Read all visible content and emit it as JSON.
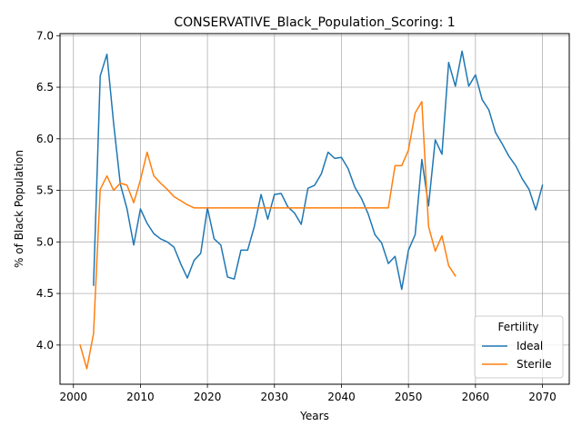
{
  "chart_data": {
    "type": "line",
    "title": "CONSERVATIVE_Black_Population_Scoring: 1",
    "xlabel": "Years",
    "ylabel": "% of Black Population",
    "xlim": [
      1998,
      2074
    ],
    "ylim": [
      3.62,
      7.02
    ],
    "xticks": [
      2000,
      2010,
      2020,
      2030,
      2040,
      2050,
      2060,
      2070
    ],
    "yticks": [
      4.0,
      4.5,
      5.0,
      5.5,
      6.0,
      6.5,
      7.0
    ],
    "ytick_labels": [
      "4.0",
      "4.5",
      "5.0",
      "5.5",
      "6.0",
      "6.5",
      "7.0"
    ],
    "grid": true,
    "legend": {
      "title": "Fertility",
      "position": "lower-right"
    },
    "series": [
      {
        "name": "Ideal",
        "color": "#1f77b4",
        "x": [
          2003,
          2004,
          2005,
          2006,
          2007,
          2008,
          2009,
          2010,
          2011,
          2012,
          2013,
          2014,
          2015,
          2016,
          2017,
          2018,
          2019,
          2020,
          2021,
          2022,
          2023,
          2024,
          2025,
          2026,
          2027,
          2028,
          2029,
          2030,
          2031,
          2032,
          2033,
          2034,
          2035,
          2036,
          2037,
          2038,
          2039,
          2040,
          2041,
          2042,
          2043,
          2044,
          2045,
          2046,
          2047,
          2048,
          2049,
          2050,
          2051,
          2052,
          2053,
          2054,
          2055,
          2056,
          2057,
          2058,
          2059,
          2060,
          2061,
          2062,
          2063,
          2064,
          2065,
          2066,
          2067,
          2068,
          2069,
          2070
        ],
        "values": [
          4.58,
          6.61,
          6.82,
          6.15,
          5.56,
          5.32,
          4.97,
          5.32,
          5.18,
          5.08,
          5.03,
          5.0,
          4.95,
          4.79,
          4.65,
          4.82,
          4.89,
          5.33,
          5.03,
          4.97,
          4.66,
          4.64,
          4.92,
          4.92,
          5.15,
          5.46,
          5.22,
          5.46,
          5.47,
          5.34,
          5.28,
          5.17,
          5.52,
          5.55,
          5.66,
          5.87,
          5.81,
          5.82,
          5.71,
          5.53,
          5.42,
          5.27,
          5.07,
          4.99,
          4.79,
          4.86,
          4.54,
          4.92,
          5.07,
          5.8,
          5.35,
          5.99,
          5.85,
          6.74,
          6.51,
          6.85,
          6.51,
          6.62,
          6.38,
          6.28,
          6.06,
          5.95,
          5.83,
          5.74,
          5.61,
          5.51,
          5.31,
          5.55
        ]
      },
      {
        "name": "Sterile",
        "color": "#ff7f0e",
        "x": [
          2001,
          2002,
          2003,
          2004,
          2005,
          2006,
          2007,
          2008,
          2009,
          2010,
          2011,
          2012,
          2013,
          2014,
          2015,
          2016,
          2017,
          2018,
          2019,
          2020,
          2021,
          2022,
          2023,
          2024,
          2025,
          2026,
          2027,
          2028,
          2029,
          2030,
          2031,
          2032,
          2033,
          2034,
          2035,
          2036,
          2037,
          2038,
          2039,
          2040,
          2041,
          2042,
          2043,
          2044,
          2045,
          2046,
          2047,
          2048,
          2049,
          2050,
          2051,
          2052,
          2053,
          2054,
          2055,
          2056,
          2057
        ],
        "values": [
          4.0,
          3.77,
          4.11,
          5.51,
          5.64,
          5.5,
          5.57,
          5.55,
          5.38,
          5.6,
          5.87,
          5.64,
          5.57,
          5.51,
          5.44,
          5.4,
          5.36,
          5.33,
          5.33,
          5.33,
          5.33,
          5.33,
          5.33,
          5.33,
          5.33,
          5.33,
          5.33,
          5.33,
          5.33,
          5.33,
          5.33,
          5.33,
          5.33,
          5.33,
          5.33,
          5.33,
          5.33,
          5.33,
          5.33,
          5.33,
          5.33,
          5.33,
          5.33,
          5.33,
          5.33,
          5.33,
          5.33,
          5.74,
          5.74,
          5.89,
          6.25,
          6.36,
          5.15,
          4.91,
          5.06,
          4.77,
          4.67
        ]
      }
    ]
  }
}
